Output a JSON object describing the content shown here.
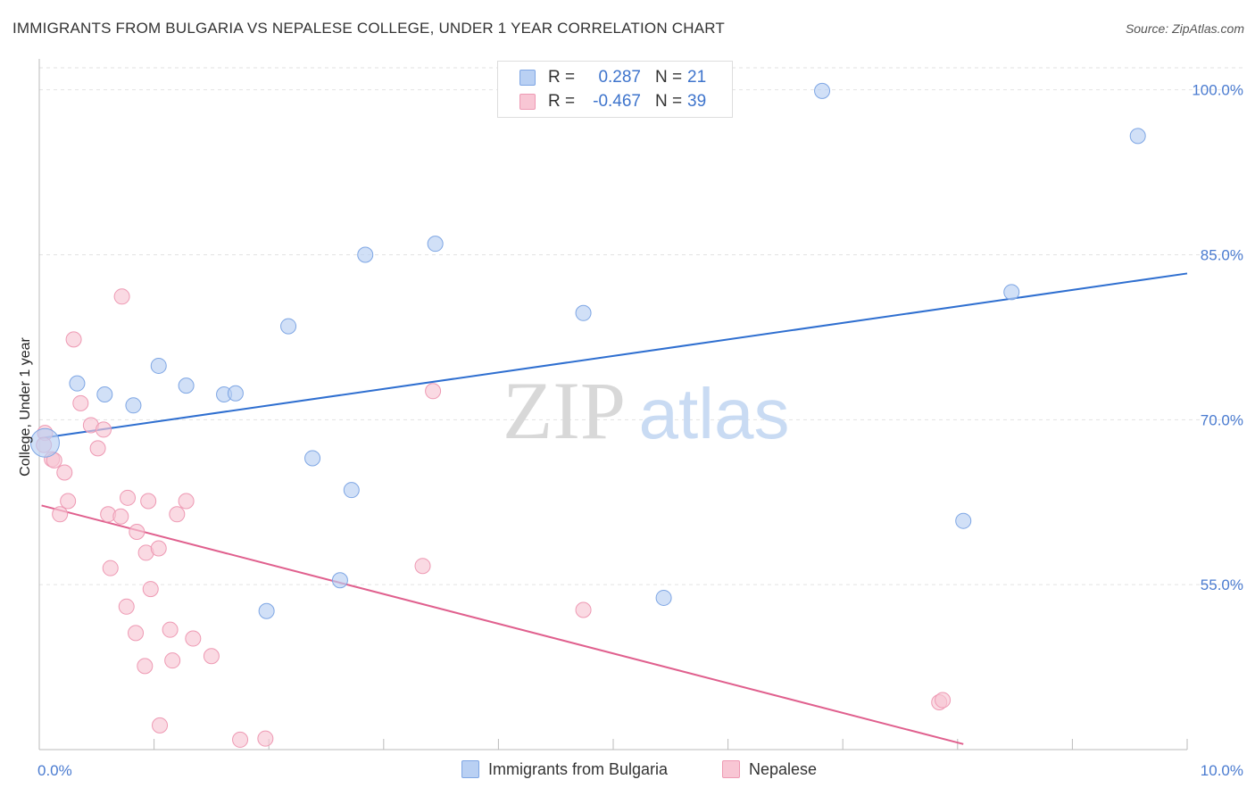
{
  "title": "IMMIGRANTS FROM BULGARIA VS NEPALESE COLLEGE, UNDER 1 YEAR CORRELATION CHART",
  "source": "Source: ZipAtlas.com",
  "watermark": {
    "zip": "ZIP",
    "atlas": "atlas"
  },
  "colors": {
    "blue_fill": "#b9d0f3",
    "blue_stroke": "#7ea6e4",
    "blue_line": "#2f6fd0",
    "pink_fill": "#f8c6d4",
    "pink_stroke": "#ee99b3",
    "pink_line": "#e0608e",
    "tick_text": "#4a7bd0",
    "grid": "#e2e2e2"
  },
  "legend": {
    "rows": [
      {
        "r_label": "R =",
        "r_value": "0.287",
        "n_label": "N =",
        "n_value": "21"
      },
      {
        "r_label": "R =",
        "r_value": "-0.467",
        "n_label": "N =",
        "n_value": "39"
      }
    ]
  },
  "bottom_legend": [
    "Immigrants from Bulgaria",
    "Nepalese"
  ],
  "chart_data": {
    "type": "scatter",
    "title": "IMMIGRANTS FROM BULGARIA VS NEPALESE COLLEGE, UNDER 1 YEAR CORRELATION CHART",
    "xlabel": "",
    "ylabel": "College, Under 1 year",
    "xlim": [
      0,
      10
    ],
    "ylim": [
      40,
      102
    ],
    "x_tick_labels": [
      "0.0%",
      "10.0%"
    ],
    "y_ticks": [
      100,
      85,
      70,
      55
    ],
    "y_tick_labels": [
      "100.0%",
      "85.0%",
      "70.0%",
      "55.0%"
    ],
    "series": [
      {
        "name": "Immigrants from Bulgaria",
        "points": [
          [
            0.05,
            67.9
          ],
          [
            0.33,
            73.3
          ],
          [
            0.57,
            72.3
          ],
          [
            0.82,
            71.3
          ],
          [
            1.04,
            74.9
          ],
          [
            1.28,
            73.1
          ],
          [
            1.61,
            72.3
          ],
          [
            1.71,
            72.4
          ],
          [
            2.17,
            78.5
          ],
          [
            2.38,
            66.5
          ],
          [
            2.84,
            85.0
          ],
          [
            2.72,
            63.6
          ],
          [
            3.45,
            86.0
          ],
          [
            4.74,
            79.7
          ],
          [
            5.44,
            53.8
          ],
          [
            6.82,
            99.9
          ],
          [
            8.47,
            81.6
          ],
          [
            8.05,
            60.8
          ],
          [
            9.57,
            95.8
          ],
          [
            2.62,
            55.4
          ],
          [
            1.98,
            52.6
          ]
        ],
        "trend": {
          "x": [
            0,
            10
          ],
          "y": [
            68.3,
            83.3
          ]
        }
      },
      {
        "name": "Nepalese",
        "points": [
          [
            0.05,
            68.8
          ],
          [
            0.11,
            66.4
          ],
          [
            0.22,
            65.2
          ],
          [
            0.36,
            71.5
          ],
          [
            0.45,
            69.5
          ],
          [
            0.51,
            67.4
          ],
          [
            0.56,
            69.1
          ],
          [
            0.18,
            61.4
          ],
          [
            0.25,
            62.6
          ],
          [
            0.6,
            61.4
          ],
          [
            0.71,
            61.2
          ],
          [
            0.62,
            56.5
          ],
          [
            0.77,
            62.9
          ],
          [
            0.72,
            81.2
          ],
          [
            0.3,
            77.3
          ],
          [
            0.95,
            62.6
          ],
          [
            0.76,
            53.0
          ],
          [
            0.85,
            59.8
          ],
          [
            0.97,
            54.6
          ],
          [
            0.93,
            57.9
          ],
          [
            0.84,
            50.6
          ],
          [
            0.92,
            47.6
          ],
          [
            1.04,
            58.3
          ],
          [
            1.2,
            61.4
          ],
          [
            1.28,
            62.6
          ],
          [
            1.14,
            50.9
          ],
          [
            1.34,
            50.1
          ],
          [
            1.16,
            48.1
          ],
          [
            1.5,
            48.5
          ],
          [
            1.05,
            42.2
          ],
          [
            1.75,
            40.9
          ],
          [
            1.97,
            41.0
          ],
          [
            3.34,
            56.7
          ],
          [
            3.43,
            72.6
          ],
          [
            4.74,
            52.7
          ],
          [
            7.84,
            44.3
          ],
          [
            7.87,
            44.5
          ],
          [
            0.04,
            67.7
          ],
          [
            0.13,
            66.3
          ]
        ],
        "trend": {
          "x": [
            0.02,
            8.05
          ],
          "y": [
            62.2,
            40.5
          ]
        }
      }
    ]
  }
}
